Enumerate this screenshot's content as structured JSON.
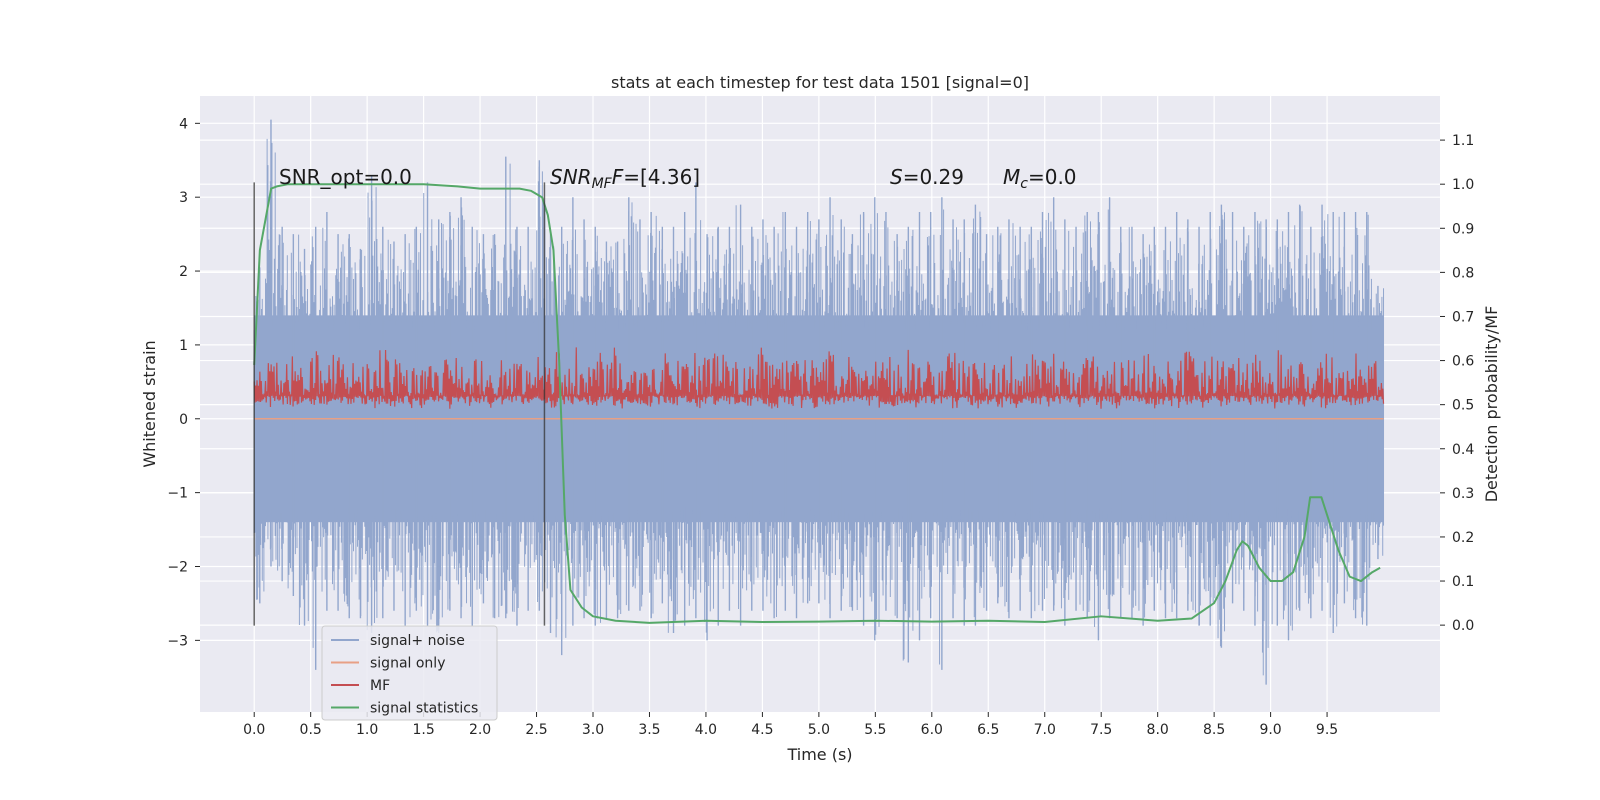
{
  "chart_data": {
    "type": "line",
    "title": "stats at each timestep for test data 1501 [signal=0]",
    "xlabel": "Time (s)",
    "ylabel_left": "Whitened strain",
    "ylabel_right": "Detection probability/MF",
    "xlim": [
      -0.48,
      10.5
    ],
    "ylim_left": [
      -3.97,
      4.37
    ],
    "ylim_right": [
      -0.197,
      1.2
    ],
    "x_ticks": [
      "0.0",
      "0.5",
      "1.0",
      "1.5",
      "2.0",
      "2.5",
      "3.0",
      "3.5",
      "4.0",
      "4.5",
      "5.0",
      "5.5",
      "6.0",
      "6.5",
      "7.0",
      "7.5",
      "8.0",
      "8.5",
      "9.0",
      "9.5"
    ],
    "x_tick_values": [
      0.0,
      0.5,
      1.0,
      1.5,
      2.0,
      2.5,
      3.0,
      3.5,
      4.0,
      4.5,
      5.0,
      5.5,
      6.0,
      6.5,
      7.0,
      7.5,
      8.0,
      8.5,
      9.0,
      9.5
    ],
    "y_left_ticks": [
      "−3",
      "−2",
      "−1",
      "0",
      "1",
      "2",
      "3",
      "4"
    ],
    "y_left_tick_values": [
      -3,
      -2,
      -1,
      0,
      1,
      2,
      3,
      4
    ],
    "y_right_ticks": [
      "0.0",
      "0.1",
      "0.2",
      "0.3",
      "0.4",
      "0.5",
      "0.6",
      "0.7",
      "0.8",
      "0.9",
      "1.0",
      "1.1"
    ],
    "y_right_tick_values": [
      0.0,
      0.1,
      0.2,
      0.3,
      0.4,
      0.5,
      0.6,
      0.7,
      0.8,
      0.9,
      1.0,
      1.1
    ],
    "grid": true,
    "legend_placement": "lower-left",
    "annotations": {
      "snr_opt": "SNR_opt=0.0",
      "snr_mf_main": "SNR",
      "snr_mf_sub": "MF",
      "snr_mf_rest": "=[4.36]",
      "s_main": "S",
      "s_rest": "=0.29",
      "mc_main": "M",
      "mc_sub": "c",
      "mc_rest": "=0.0"
    },
    "vertical_markers_x": [
      0.0,
      2.57
    ],
    "series": [
      {
        "name": "signal+ noise",
        "color": "#92a6cd",
        "axis": "left",
        "t_range": [
          0.0,
          10.0
        ],
        "envelope_max": [
          2.05,
          4.05,
          2.6,
          2.5,
          2.3,
          2.6,
          2.8,
          2.5,
          2.5,
          2.3,
          3.3,
          2.6,
          2.4,
          2.5,
          2.6,
          3.2,
          2.7,
          2.8,
          3.0,
          2.6,
          2.5,
          2.5,
          3.55,
          2.6,
          2.6,
          3.5,
          2.5,
          2.6,
          3.0,
          2.7,
          2.6,
          2.4,
          2.4,
          3.0,
          2.7,
          2.8,
          2.6,
          2.6,
          2.8,
          3.2,
          2.5,
          2.6,
          2.6,
          2.9,
          2.6,
          2.7,
          2.6,
          2.8,
          2.6,
          2.8,
          2.7,
          3.0,
          2.7,
          2.5,
          2.8,
          3.0,
          2.8,
          2.5,
          2.6,
          2.8,
          2.8,
          3.0,
          2.7,
          2.7,
          2.9,
          2.5,
          2.6,
          2.7,
          2.6,
          2.6,
          2.8,
          3.0,
          2.7,
          2.6,
          2.8,
          2.8,
          3.0,
          2.6,
          2.6,
          2.5,
          2.6,
          2.6,
          2.8,
          2.7,
          2.6,
          2.8,
          2.9,
          2.8,
          2.6,
          2.8,
          2.7,
          2.7,
          2.8,
          2.9,
          2.6,
          2.9,
          2.8,
          2.8,
          2.8,
          2.8,
          1.8
        ],
        "envelope_min": [
          -2.5,
          -2.0,
          -2.2,
          -2.4,
          -2.8,
          -3.4,
          -2.6,
          -2.6,
          -2.7,
          -2.7,
          -2.9,
          -2.7,
          -2.6,
          -2.8,
          -2.6,
          -2.8,
          -2.9,
          -2.6,
          -2.7,
          -2.8,
          -2.5,
          -2.7,
          -2.7,
          -2.8,
          -2.6,
          -2.6,
          -2.9,
          -3.2,
          -2.8,
          -2.7,
          -2.8,
          -2.7,
          -2.7,
          -2.6,
          -2.6,
          -2.7,
          -2.5,
          -2.9,
          -2.8,
          -2.7,
          -3.0,
          -2.8,
          -2.6,
          -2.8,
          -2.6,
          -2.6,
          -2.7,
          -2.6,
          -2.7,
          -2.5,
          -2.5,
          -2.7,
          -2.6,
          -2.6,
          -2.8,
          -3.0,
          -2.6,
          -2.7,
          -3.3,
          -3.0,
          -2.7,
          -3.4,
          -2.7,
          -2.8,
          -2.8,
          -2.6,
          -2.5,
          -2.7,
          -2.6,
          -2.7,
          -2.6,
          -2.6,
          -2.8,
          -2.6,
          -2.7,
          -3.0,
          -2.7,
          -2.7,
          -2.7,
          -2.8,
          -2.6,
          -2.7,
          -2.7,
          -2.6,
          -2.8,
          -2.8,
          -3.1,
          -2.5,
          -2.6,
          -2.8,
          -3.6,
          -2.8,
          -3.0,
          -2.6,
          -2.7,
          -2.6,
          -2.9,
          -2.5,
          -2.7,
          -2.8,
          -1.9
        ],
        "band": [
          -1.4,
          1.4
        ]
      },
      {
        "name": "signal only",
        "color": "#e8a085",
        "axis": "left",
        "t": [
          0.0,
          10.0
        ],
        "values": [
          0.0,
          0.0
        ]
      },
      {
        "name": "MF",
        "color": "#c44e52",
        "axis": "right",
        "t_range": [
          0.0,
          10.0
        ],
        "baseline": 0.52,
        "spread": [
          0.5,
          0.62
        ],
        "envelope_max": [
          0.58,
          0.62,
          0.6,
          0.61,
          0.6,
          0.63,
          0.6,
          0.62,
          0.61,
          0.62,
          0.6,
          0.63,
          0.62,
          0.61,
          0.63,
          0.62,
          0.6,
          0.62,
          0.61,
          0.63,
          0.6,
          0.62,
          0.62,
          0.6,
          0.63,
          0.61,
          0.6,
          0.62,
          0.63,
          0.61,
          0.62,
          0.6,
          0.63,
          0.61,
          0.62,
          0.6,
          0.62,
          0.61,
          0.6,
          0.63,
          0.61,
          0.62,
          0.6,
          0.61,
          0.62,
          0.63,
          0.6,
          0.61,
          0.62,
          0.61,
          0.6,
          0.63,
          0.61,
          0.62,
          0.6,
          0.62,
          0.61,
          0.6,
          0.63,
          0.62,
          0.61,
          0.6,
          0.62,
          0.61,
          0.6,
          0.62,
          0.61,
          0.62,
          0.6,
          0.62,
          0.61,
          0.63,
          0.6,
          0.62,
          0.61,
          0.62,
          0.6,
          0.61,
          0.62,
          0.63,
          0.61,
          0.6,
          0.62,
          0.63,
          0.61,
          0.62,
          0.6,
          0.62,
          0.61,
          0.62,
          0.6,
          0.63,
          0.61,
          0.62,
          0.6,
          0.62,
          0.61,
          0.62,
          0.62,
          0.6,
          0.62
        ],
        "envelope_min": [
          0.5,
          0.49,
          0.5,
          0.49,
          0.5,
          0.49,
          0.5,
          0.5,
          0.49,
          0.5,
          0.49,
          0.5,
          0.49,
          0.5,
          0.49,
          0.5,
          0.5,
          0.49,
          0.5,
          0.49,
          0.5,
          0.49,
          0.5,
          0.49,
          0.5,
          0.5,
          0.49,
          0.5,
          0.49,
          0.5,
          0.49,
          0.5,
          0.49,
          0.5,
          0.5,
          0.49,
          0.5,
          0.49,
          0.5,
          0.49,
          0.5,
          0.49,
          0.5,
          0.5,
          0.49,
          0.5,
          0.49,
          0.5,
          0.49,
          0.5,
          0.49,
          0.5,
          0.5,
          0.49,
          0.5,
          0.49,
          0.5,
          0.49,
          0.5,
          0.49,
          0.5,
          0.5,
          0.49,
          0.5,
          0.49,
          0.5,
          0.49,
          0.5,
          0.49,
          0.5,
          0.5,
          0.49,
          0.5,
          0.49,
          0.5,
          0.49,
          0.5,
          0.49,
          0.5,
          0.5,
          0.49,
          0.5,
          0.49,
          0.5,
          0.49,
          0.5,
          0.49,
          0.5,
          0.5,
          0.49,
          0.5,
          0.49,
          0.5,
          0.49,
          0.5,
          0.49,
          0.5,
          0.5,
          0.49,
          0.5,
          0.5
        ]
      },
      {
        "name": "signal statistics",
        "color": "#55a868",
        "axis": "right",
        "t": [
          0.0,
          0.05,
          0.1,
          0.15,
          0.2,
          0.3,
          0.5,
          1.0,
          1.5,
          1.8,
          2.0,
          2.2,
          2.35,
          2.45,
          2.55,
          2.6,
          2.65,
          2.7,
          2.75,
          2.8,
          2.9,
          3.0,
          3.2,
          3.5,
          4.0,
          4.5,
          5.0,
          5.5,
          6.0,
          6.5,
          7.0,
          7.5,
          8.0,
          8.3,
          8.5,
          8.6,
          8.7,
          8.75,
          8.8,
          8.9,
          9.0,
          9.1,
          9.2,
          9.3,
          9.35,
          9.45,
          9.5,
          9.6,
          9.7,
          9.8,
          9.9,
          9.97
        ],
        "values": [
          0.59,
          0.85,
          0.92,
          0.99,
          0.995,
          1.0,
          1.0,
          1.0,
          1.0,
          0.995,
          0.99,
          0.99,
          0.99,
          0.985,
          0.97,
          0.93,
          0.85,
          0.6,
          0.25,
          0.08,
          0.04,
          0.02,
          0.01,
          0.005,
          0.01,
          0.007,
          0.008,
          0.01,
          0.008,
          0.01,
          0.007,
          0.02,
          0.01,
          0.015,
          0.05,
          0.1,
          0.17,
          0.19,
          0.18,
          0.13,
          0.1,
          0.1,
          0.12,
          0.2,
          0.29,
          0.29,
          0.25,
          0.17,
          0.11,
          0.1,
          0.12,
          0.13
        ]
      }
    ]
  }
}
